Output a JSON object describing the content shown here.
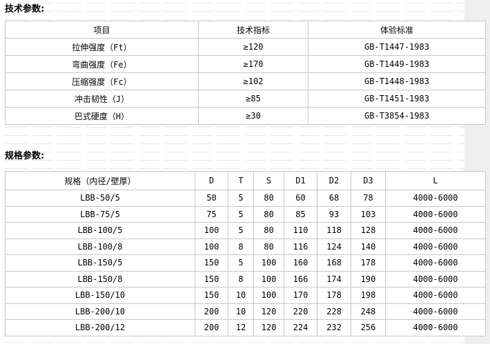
{
  "page": {
    "background_color": "#efefef",
    "content_background": "#ffffff",
    "table_border_color": "#c6c6c6"
  },
  "tech_section": {
    "title": "技术参数:",
    "table": {
      "columns": [
        "项目",
        "技术指标",
        "体验标准"
      ],
      "rows": [
        [
          "拉伸强度（Ft）",
          "≥120",
          "GB-T1447-1983"
        ],
        [
          "弯曲强度（Fe）",
          "≥170",
          "GB-T1449-1983"
        ],
        [
          "压缩强度（Fc）",
          "≥102",
          "GB-T1448-1983"
        ],
        [
          "冲击韧性（J）",
          "≥85",
          "GB-T1451-1983"
        ],
        [
          "巴式硬度（H）",
          "≥30",
          "GB-T3854-1983"
        ]
      ]
    }
  },
  "spec_section": {
    "title": "规格参数:",
    "table": {
      "columns": [
        "规格（内径/壁厚）",
        "D",
        "T",
        "S",
        "D1",
        "D2",
        "D3",
        "L"
      ],
      "rows": [
        [
          "LBB-50/5",
          "50",
          "5",
          "80",
          "60",
          "68",
          "78",
          "4000-6000"
        ],
        [
          "LBB-75/5",
          "75",
          "5",
          "80",
          "85",
          "93",
          "103",
          "4000-6000"
        ],
        [
          "LBB-100/5",
          "100",
          "5",
          "80",
          "110",
          "118",
          "128",
          "4000-6000"
        ],
        [
          "LBB-100/8",
          "100",
          "8",
          "80",
          "116",
          "124",
          "140",
          "4000-6000"
        ],
        [
          "LBB-150/5",
          "150",
          "5",
          "100",
          "160",
          "168",
          "178",
          "4000-6000"
        ],
        [
          "LBB-150/8",
          "150",
          "8",
          "100",
          "166",
          "174",
          "190",
          "4000-6000"
        ],
        [
          "LBB-150/10",
          "150",
          "10",
          "100",
          "170",
          "178",
          "198",
          "4000-6000"
        ],
        [
          "LBB-200/10",
          "200",
          "10",
          "120",
          "220",
          "228",
          "248",
          "4000-6000"
        ],
        [
          "LBB-200/12",
          "200",
          "12",
          "120",
          "224",
          "232",
          "256",
          "4000-6000"
        ]
      ]
    }
  }
}
